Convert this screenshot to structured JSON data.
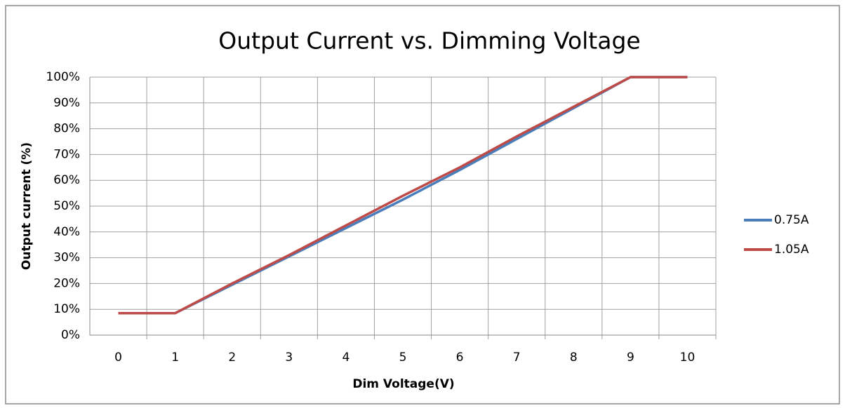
{
  "chart_data": {
    "type": "line",
    "title": "Output Current vs. Dimming Voltage",
    "x_label": "Dim Voltage(V)",
    "y_label": "Output current (%)",
    "categories": [
      "0",
      "1",
      "2",
      "3",
      "4",
      "5",
      "6",
      "7",
      "8",
      "9",
      "10"
    ],
    "series": [
      {
        "name": "0.75A",
        "color": "#4a7ebb",
        "values": [
          8.5,
          8.5,
          19.5,
          30.5,
          41.5,
          52.5,
          64,
          76,
          88,
          100,
          100
        ]
      },
      {
        "name": "1.05A",
        "color": "#be4b48",
        "values": [
          8.5,
          8.5,
          20,
          31,
          42.5,
          54,
          65,
          77,
          88.5,
          100,
          100
        ]
      }
    ],
    "ylim": [
      0,
      100
    ],
    "yticks": [
      {
        "value": 0,
        "label": "0%"
      },
      {
        "value": 10,
        "label": "10%"
      },
      {
        "value": 20,
        "label": "20%"
      },
      {
        "value": 30,
        "label": "30%"
      },
      {
        "value": 40,
        "label": "40%"
      },
      {
        "value": 50,
        "label": "50%"
      },
      {
        "value": 60,
        "label": "60%"
      },
      {
        "value": 70,
        "label": "70%"
      },
      {
        "value": 80,
        "label": "80%"
      },
      {
        "value": 90,
        "label": "90%"
      },
      {
        "value": 100,
        "label": "100%"
      }
    ],
    "grid": true,
    "legend": "right"
  }
}
